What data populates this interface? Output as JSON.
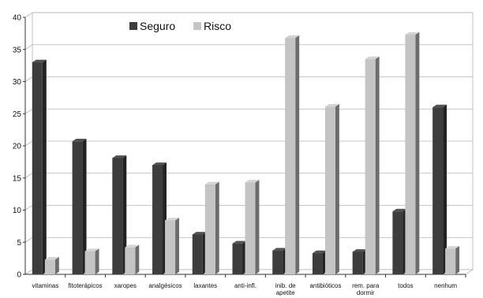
{
  "chart_data": {
    "type": "bar",
    "categories": [
      "vitaminas",
      "fitoterápicos",
      "xaropes",
      "analgésicos",
      "laxantes",
      "anti-infl.",
      "inib. de apetite",
      "antibióticos",
      "rem. para dormir",
      "todos",
      "nenhum"
    ],
    "category_lines": [
      [
        "vitaminas"
      ],
      [
        "fitoterápicos"
      ],
      [
        "xaropes"
      ],
      [
        "analgésicos"
      ],
      [
        "laxantes"
      ],
      [
        "anti-infl."
      ],
      [
        "inib. de",
        "apetite"
      ],
      [
        "antibióticos"
      ],
      [
        "rem. para",
        "dormir"
      ],
      [
        "todos"
      ],
      [
        "nenhum"
      ]
    ],
    "series": [
      {
        "name": "Seguro",
        "color": "#3d3d3d",
        "values": [
          33,
          20.7,
          18.1,
          17,
          6.2,
          4.8,
          3.7,
          3.3,
          3.5,
          9.8,
          26
        ]
      },
      {
        "name": "Risco",
        "color": "#c4c4c4",
        "values": [
          2.3,
          3.6,
          4.2,
          8.4,
          14,
          14.3,
          36.8,
          26.1,
          33.5,
          37.3,
          4
        ]
      }
    ],
    "ylim": [
      0,
      40
    ],
    "yticks": [
      0,
      5,
      10,
      15,
      20,
      25,
      30,
      35,
      40
    ],
    "grid": true,
    "legend_position": "top-center",
    "title": "",
    "xlabel": "",
    "ylabel": ""
  },
  "colors": {
    "seguro": "#3d3d3d",
    "risco": "#c4c4c4",
    "grid": "#b5b5b5",
    "axis": "#333333"
  }
}
